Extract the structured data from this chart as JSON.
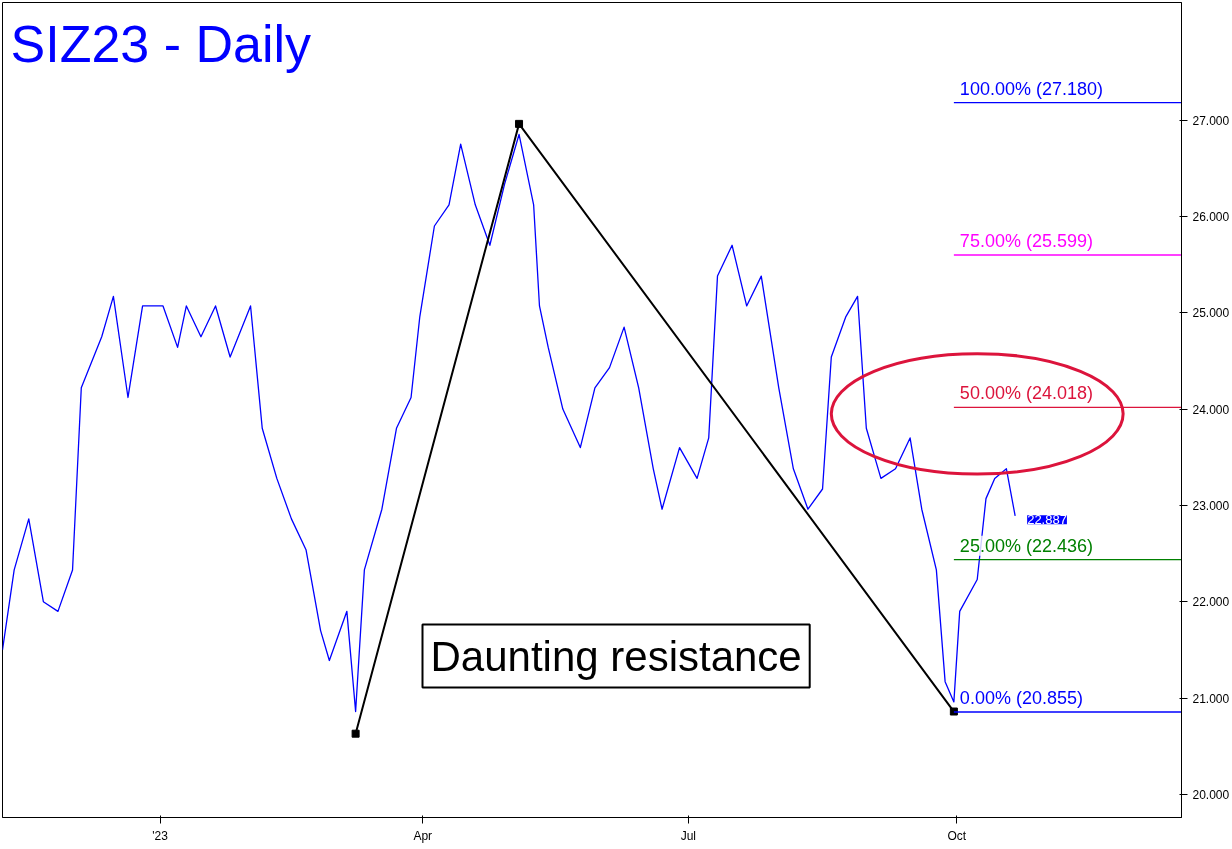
{
  "chart_data": {
    "type": "line",
    "title": "SIZ23 - Daily",
    "xlim": [
      "2022-11-08",
      "2023-12-17"
    ],
    "ylim": [
      19.76,
      28.22
    ],
    "xticks": [
      {
        "value": "2023-01-01",
        "label": "'23"
      },
      {
        "value": "2023-04-01",
        "label": "Apr"
      },
      {
        "value": "2023-07-01",
        "label": "Jul"
      },
      {
        "value": "2023-10-01",
        "label": "Oct"
      }
    ],
    "yticks": [
      {
        "value": 20,
        "label": "20.000"
      },
      {
        "value": 21,
        "label": "21.000"
      },
      {
        "value": 22,
        "label": "22.000"
      },
      {
        "value": 23,
        "label": "23.000"
      },
      {
        "value": 24,
        "label": "24.000"
      },
      {
        "value": 25,
        "label": "25.000"
      },
      {
        "value": 26,
        "label": "26.000"
      },
      {
        "value": 27,
        "label": "27.000"
      }
    ],
    "grid": false,
    "series": [
      {
        "color": "#0000ff",
        "x": [
          "2022-11-08",
          "2022-11-12",
          "2022-11-17",
          "2022-11-22",
          "2022-11-27",
          "2022-12-02",
          "2022-12-05",
          "2022-12-12",
          "2022-12-16",
          "2022-12-21",
          "2022-12-26",
          "2023-01-02",
          "2023-01-07",
          "2023-01-10",
          "2023-01-15",
          "2023-01-20",
          "2023-01-25",
          "2023-02-01",
          "2023-02-05",
          "2023-02-10",
          "2023-02-15",
          "2023-02-20",
          "2023-02-25",
          "2023-02-28",
          "2023-03-06",
          "2023-03-09",
          "2023-03-12",
          "2023-03-18",
          "2023-03-23",
          "2023-03-28",
          "2023-03-31",
          "2023-04-05",
          "2023-04-10",
          "2023-04-14",
          "2023-04-19",
          "2023-04-24",
          "2023-04-29",
          "2023-05-04",
          "2023-05-09",
          "2023-05-11",
          "2023-05-14",
          "2023-05-19",
          "2023-05-25",
          "2023-05-30",
          "2023-06-04",
          "2023-06-09",
          "2023-06-14",
          "2023-06-19",
          "2023-06-22",
          "2023-06-28",
          "2023-07-04",
          "2023-07-08",
          "2023-07-11",
          "2023-07-16",
          "2023-07-21",
          "2023-07-26",
          "2023-08-01",
          "2023-08-06",
          "2023-08-11",
          "2023-08-16",
          "2023-08-19",
          "2023-08-24",
          "2023-08-28",
          "2023-08-31",
          "2023-09-05",
          "2023-09-10",
          "2023-09-15",
          "2023-09-19",
          "2023-09-24",
          "2023-09-27",
          "2023-09-30",
          "2023-10-02",
          "2023-10-08",
          "2023-10-11",
          "2023-10-14",
          "2023-10-18",
          "2023-10-21"
        ],
        "values": [
          21.5,
          22.33,
          22.86,
          22.0,
          21.9,
          22.33,
          24.22,
          24.75,
          25.17,
          24.12,
          25.07,
          25.07,
          24.64,
          25.07,
          24.75,
          25.07,
          24.54,
          25.07,
          23.8,
          23.28,
          22.86,
          22.54,
          21.7,
          21.39,
          21.9,
          20.86,
          22.33,
          22.96,
          23.8,
          24.12,
          24.96,
          25.9,
          26.12,
          26.75,
          26.12,
          25.7,
          26.33,
          26.85,
          26.12,
          25.07,
          24.64,
          24.0,
          23.6,
          24.22,
          24.43,
          24.85,
          24.22,
          23.38,
          22.96,
          23.6,
          23.28,
          23.7,
          25.38,
          25.7,
          25.07,
          25.38,
          24.22,
          23.38,
          22.96,
          23.17,
          24.54,
          24.96,
          25.17,
          23.8,
          23.28,
          23.38,
          23.7,
          22.96,
          22.33,
          21.17,
          20.96,
          21.9,
          22.23,
          23.07,
          23.28,
          23.38,
          22.89
        ]
      },
      {
        "color": "#000000",
        "marker": "square",
        "x": [
          "2023-03-09",
          "2023-05-04",
          "2023-09-30"
        ],
        "values": [
          20.63,
          26.96,
          20.86
        ]
      }
    ],
    "ref_lines": [
      {
        "axis": "y",
        "value": 27.18,
        "label": "100.00% (27.180)",
        "color": "#0000ff"
      },
      {
        "axis": "y",
        "value": 25.599,
        "label": "75.00% (25.599)",
        "color": "#ff00ff"
      },
      {
        "axis": "y",
        "value": 24.018,
        "label": "50.00% (24.018)",
        "color": "#dc143c"
      },
      {
        "axis": "y",
        "value": 22.436,
        "label": "25.00% (22.436)",
        "color": "#008000"
      },
      {
        "axis": "y",
        "value": 20.855,
        "label": "0.00% (20.855)",
        "color": "#0000ff"
      }
    ],
    "annotations": [
      "Daunting resistance",
      {
        "text": "22.887",
        "x": "2023-10-21",
        "y": 22.887
      }
    ]
  }
}
